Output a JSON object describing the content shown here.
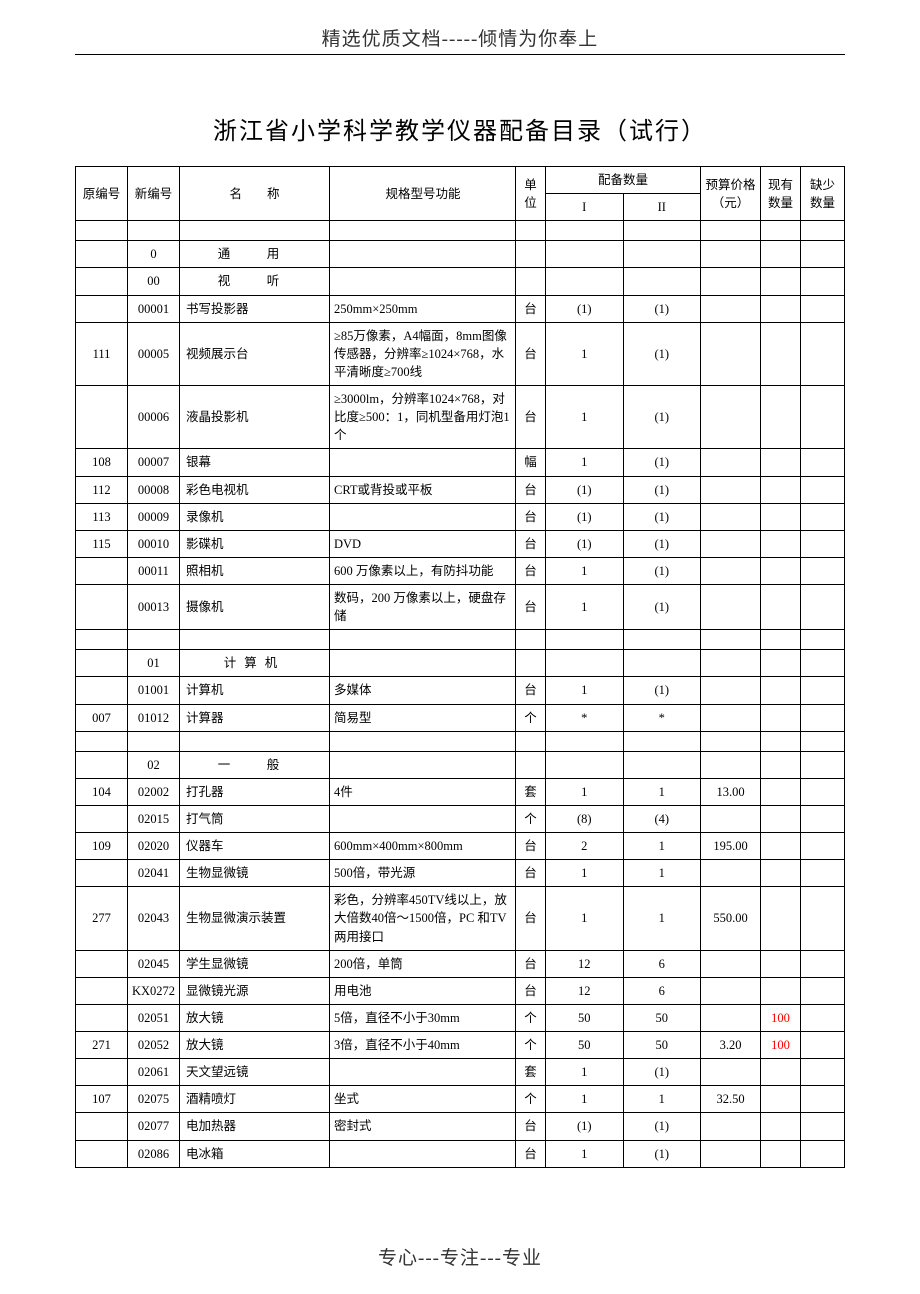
{
  "header": "精选优质文档-----倾情为你奉上",
  "title": "浙江省小学科学教学仪器配备目录（试行）",
  "footer": "专心---专注---专业",
  "red_color": "#ff0000",
  "columns": {
    "c0": "原编号",
    "c1": "新编号",
    "c2": "名　　称",
    "c3": "规格型号功能",
    "c4": "单位",
    "c5_group": "配备数量",
    "c5": "I",
    "c6": "II",
    "c7": "预算价格（元）",
    "c8": "现有数量",
    "c9": "缺少数量"
  },
  "rows": [
    {
      "t": "blank"
    },
    {
      "c0": "",
      "c1": "0",
      "c2": "通　用",
      "c2c": true,
      "c3": "",
      "c4": "",
      "c5": "",
      "c6": "",
      "c7": "",
      "c8": "",
      "c9": "",
      "sp": "spaced"
    },
    {
      "c0": "",
      "c1": "00",
      "c2": "视　听",
      "c2c": true,
      "c3": "",
      "c4": "",
      "c5": "",
      "c6": "",
      "c7": "",
      "c8": "",
      "c9": "",
      "sp": "spaced"
    },
    {
      "c0": "",
      "c1": "00001",
      "c2": "书写投影器",
      "c3": "250mm×250mm",
      "c4": "台",
      "c5": "(1)",
      "c6": "(1)",
      "c7": "",
      "c8": "",
      "c9": ""
    },
    {
      "c0": "111",
      "c1": "00005",
      "c2": "视频展示台",
      "c3": "≥85万像素，A4幅面，8mm图像传感器，分辨率≥1024×768，水平清晰度≥700线",
      "c4": "台",
      "c5": "1",
      "c6": "(1)",
      "c7": "",
      "c8": "",
      "c9": ""
    },
    {
      "c0": "",
      "c1": "00006",
      "c2": "液晶投影机",
      "c3": "≥3000lm，分辨率1024×768，对比度≥500：1，同机型备用灯泡1个",
      "c4": "台",
      "c5": "1",
      "c6": "(1)",
      "c7": "",
      "c8": "",
      "c9": ""
    },
    {
      "c0": "108",
      "c1": "00007",
      "c2": "银幕",
      "c3": "",
      "c4": "幅",
      "c5": "1",
      "c6": "(1)",
      "c7": "",
      "c8": "",
      "c9": ""
    },
    {
      "c0": "112",
      "c1": "00008",
      "c2": "彩色电视机",
      "c3": "CRT或背投或平板",
      "c4": "台",
      "c5": "(1)",
      "c6": "(1)",
      "c7": "",
      "c8": "",
      "c9": ""
    },
    {
      "c0": "113",
      "c1": "00009",
      "c2": "录像机",
      "c3": "",
      "c4": "台",
      "c5": "(1)",
      "c6": "(1)",
      "c7": "",
      "c8": "",
      "c9": ""
    },
    {
      "c0": "115",
      "c1": "00010",
      "c2": "影碟机",
      "c3": "DVD",
      "c4": "台",
      "c5": "(1)",
      "c6": "(1)",
      "c7": "",
      "c8": "",
      "c9": ""
    },
    {
      "c0": "",
      "c1": "00011",
      "c2": "照相机",
      "c3": "600 万像素以上，有防抖功能",
      "c4": "台",
      "c5": "1",
      "c6": "(1)",
      "c7": "",
      "c8": "",
      "c9": ""
    },
    {
      "c0": "",
      "c1": "00013",
      "c2": "摄像机",
      "c3": "数码，200 万像素以上，硬盘存储",
      "c4": "台",
      "c5": "1",
      "c6": "(1)",
      "c7": "",
      "c8": "",
      "c9": ""
    },
    {
      "t": "blank"
    },
    {
      "c0": "",
      "c1": "01",
      "c2": "计算机",
      "c2c": true,
      "c3": "",
      "c4": "",
      "c5": "",
      "c6": "",
      "c7": "",
      "c8": "",
      "c9": "",
      "sp": "spaced2"
    },
    {
      "c0": "",
      "c1": "01001",
      "c2": "计算机",
      "c3": "多媒体",
      "c4": "台",
      "c5": "1",
      "c6": "(1)",
      "c7": "",
      "c8": "",
      "c9": ""
    },
    {
      "c0": "007",
      "c1": "01012",
      "c2": "计算器",
      "c3": "简易型",
      "c4": "个",
      "c5": "*",
      "c6": "*",
      "c7": "",
      "c8": "",
      "c9": ""
    },
    {
      "t": "blank"
    },
    {
      "c0": "",
      "c1": "02",
      "c2": "一　般",
      "c2c": true,
      "c3": "",
      "c4": "",
      "c5": "",
      "c6": "",
      "c7": "",
      "c8": "",
      "c9": "",
      "sp": "spaced"
    },
    {
      "c0": "104",
      "c1": "02002",
      "c2": "打孔器",
      "c3": "4件",
      "c4": "套",
      "c5": "1",
      "c6": "1",
      "c7": "13.00",
      "c8": "",
      "c9": ""
    },
    {
      "c0": "",
      "c1": "02015",
      "c2": "打气筒",
      "c3": "",
      "c4": "个",
      "c5": "(8)",
      "c6": "(4)",
      "c7": "",
      "c8": "",
      "c9": ""
    },
    {
      "c0": "109",
      "c1": "02020",
      "c2": "仪器车",
      "c3": "600mm×400mm×800mm",
      "c4": "台",
      "c5": "2",
      "c6": "1",
      "c7": "195.00",
      "c8": "",
      "c9": ""
    },
    {
      "c0": "",
      "c1": "02041",
      "c2": "生物显微镜",
      "c3": "500倍，带光源",
      "c4": "台",
      "c5": "1",
      "c6": "1",
      "c7": "",
      "c8": "",
      "c9": ""
    },
    {
      "c0": "277",
      "c1": "02043",
      "c2": "生物显微演示装置",
      "c3": "彩色，分辨率450TV线以上，放大倍数40倍～1500倍，PC 和TV两用接口",
      "c4": "台",
      "c5": "1",
      "c6": "1",
      "c7": "550.00",
      "c8": "",
      "c9": ""
    },
    {
      "c0": "",
      "c1": "02045",
      "c2": "学生显微镜",
      "c3": "200倍，单筒",
      "c4": "台",
      "c5": "12",
      "c6": "6",
      "c7": "",
      "c8": "",
      "c9": ""
    },
    {
      "c0": "",
      "c1": "KX0272",
      "c2": "显微镜光源",
      "c3": "用电池",
      "c4": "台",
      "c5": "12",
      "c6": "6",
      "c7": "",
      "c8": "",
      "c9": ""
    },
    {
      "c0": "",
      "c1": "02051",
      "c2": "放大镜",
      "c3": "5倍，直径不小于30mm",
      "c4": "个",
      "c5": "50",
      "c6": "50",
      "c7": "",
      "c8": "100",
      "c8r": true,
      "c9": ""
    },
    {
      "c0": "271",
      "c1": "02052",
      "c2": "放大镜",
      "c3": "3倍，直径不小于40mm",
      "c4": "个",
      "c5": "50",
      "c6": "50",
      "c7": "3.20",
      "c8": "100",
      "c8r": true,
      "c9": ""
    },
    {
      "c0": "",
      "c1": "02061",
      "c2": "天文望远镜",
      "c3": "",
      "c4": "套",
      "c5": "1",
      "c6": "(1)",
      "c7": "",
      "c8": "",
      "c9": ""
    },
    {
      "c0": "107",
      "c1": "02075",
      "c2": "酒精喷灯",
      "c3": "坐式",
      "c4": "个",
      "c5": "1",
      "c6": "1",
      "c7": "32.50",
      "c8": "",
      "c9": ""
    },
    {
      "c0": "",
      "c1": "02077",
      "c2": "电加热器",
      "c3": "密封式",
      "c4": "台",
      "c5": "(1)",
      "c6": "(1)",
      "c7": "",
      "c8": "",
      "c9": ""
    },
    {
      "c0": "",
      "c1": "02086",
      "c2": "电冰箱",
      "c3": "",
      "c4": "台",
      "c5": "1",
      "c6": "(1)",
      "c7": "",
      "c8": "",
      "c9": ""
    }
  ]
}
